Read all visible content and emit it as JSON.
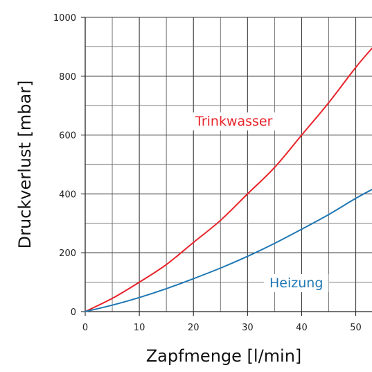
{
  "chart_data": {
    "type": "line",
    "title": "",
    "xlabel": "Zapfmenge [l/min]",
    "ylabel": "Druckverlust [mbar]",
    "xlim": [
      0,
      53
    ],
    "ylim": [
      0,
      1000
    ],
    "x_ticks": [
      0,
      10,
      20,
      30,
      40,
      50
    ],
    "y_ticks": [
      0,
      200,
      400,
      600,
      800,
      1000
    ],
    "grid": true,
    "legend": "inline labels",
    "series": [
      {
        "name": "Trinkwasser",
        "color": "#e8232a",
        "x": [
          0,
          5,
          10,
          15,
          20,
          25,
          30,
          35,
          40,
          45,
          50,
          53
        ],
        "y": [
          0,
          45,
          100,
          160,
          235,
          310,
          400,
          490,
          600,
          710,
          830,
          895
        ]
      },
      {
        "name": "Heizung",
        "color": "#1f77b4",
        "x": [
          0,
          5,
          10,
          15,
          20,
          25,
          30,
          35,
          40,
          45,
          50,
          53
        ],
        "y": [
          0,
          22,
          48,
          78,
          112,
          148,
          188,
          232,
          280,
          330,
          385,
          415
        ]
      }
    ]
  }
}
